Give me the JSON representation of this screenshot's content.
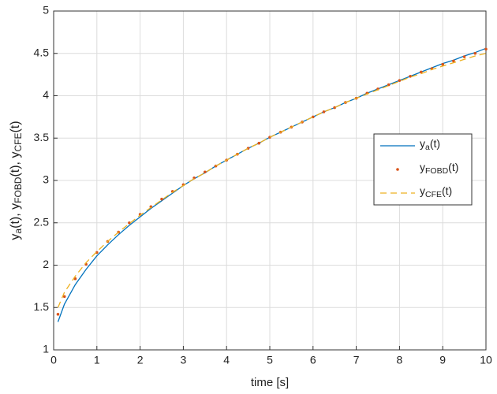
{
  "chart_data": {
    "type": "line",
    "xlabel": "time [s]",
    "ylabel": "ya(t), yFOBD(t), yCFE(t)",
    "x": [
      0.1,
      0.25,
      0.5,
      0.75,
      1,
      1.25,
      1.5,
      1.75,
      2,
      2.25,
      2.5,
      2.75,
      3,
      3.25,
      3.5,
      3.75,
      4,
      4.25,
      4.5,
      4.75,
      5,
      5.25,
      5.5,
      5.75,
      6,
      6.25,
      6.5,
      6.75,
      7,
      7.25,
      7.5,
      7.75,
      8,
      8.25,
      8.5,
      8.75,
      9,
      9.25,
      9.5,
      9.75,
      10
    ],
    "series": [
      {
        "name": "ya(t)",
        "color": "#0072bd",
        "style": "solid",
        "values": [
          1.33,
          1.54,
          1.77,
          1.95,
          2.11,
          2.24,
          2.36,
          2.47,
          2.57,
          2.67,
          2.76,
          2.85,
          2.94,
          3.02,
          3.09,
          3.17,
          3.24,
          3.31,
          3.38,
          3.44,
          3.51,
          3.57,
          3.63,
          3.69,
          3.75,
          3.81,
          3.86,
          3.92,
          3.97,
          4.03,
          4.08,
          4.13,
          4.18,
          4.23,
          4.28,
          4.33,
          4.38,
          4.42,
          4.47,
          4.51,
          4.56
        ]
      },
      {
        "name": "yFOBD(t)",
        "color": "#d95319",
        "style": "dots",
        "values": [
          1.42,
          1.63,
          1.84,
          2.01,
          2.15,
          2.28,
          2.39,
          2.5,
          2.6,
          2.69,
          2.78,
          2.87,
          2.95,
          3.03,
          3.1,
          3.17,
          3.24,
          3.31,
          3.38,
          3.44,
          3.51,
          3.57,
          3.63,
          3.69,
          3.75,
          3.81,
          3.86,
          3.92,
          3.97,
          4.03,
          4.08,
          4.13,
          4.18,
          4.23,
          4.28,
          4.32,
          4.37,
          4.41,
          4.46,
          4.5,
          4.55
        ]
      },
      {
        "name": "yCFE(t)",
        "color": "#edb120",
        "style": "dashed",
        "values": [
          1.5,
          1.68,
          1.87,
          2.03,
          2.16,
          2.28,
          2.39,
          2.49,
          2.59,
          2.68,
          2.77,
          2.86,
          2.94,
          3.02,
          3.09,
          3.17,
          3.24,
          3.31,
          3.38,
          3.44,
          3.51,
          3.57,
          3.63,
          3.69,
          3.75,
          3.81,
          3.86,
          3.92,
          3.97,
          4.02,
          4.07,
          4.12,
          4.17,
          4.22,
          4.26,
          4.31,
          4.35,
          4.39,
          4.43,
          4.47,
          4.5
        ]
      }
    ],
    "xlim": [
      0,
      10
    ],
    "xticks": [
      0,
      1,
      2,
      3,
      4,
      5,
      6,
      7,
      8,
      9,
      10
    ],
    "ylim": [
      1,
      5
    ],
    "yticks": [
      1,
      1.5,
      2,
      2.5,
      3,
      3.5,
      4,
      4.5,
      5
    ],
    "grid": true,
    "legend": "east"
  }
}
